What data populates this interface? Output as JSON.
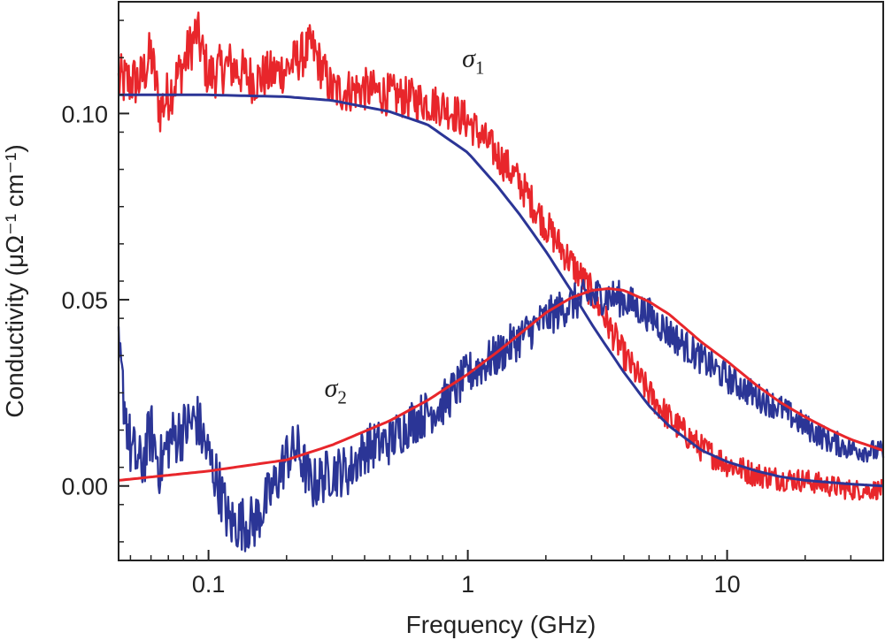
{
  "chart_data": {
    "type": "line",
    "title": "",
    "xlabel": "Frequency (GHz)",
    "ylabel": "Conductivity (μΩ⁻¹ cm⁻¹)",
    "xscale": "log",
    "xlim": [
      0.045,
      40
    ],
    "ylim": [
      -0.02,
      0.13
    ],
    "grid": false,
    "legend": "none",
    "xticks": [
      {
        "value": 0.1,
        "label": "0.1"
      },
      {
        "value": 1,
        "label": "1"
      },
      {
        "value": 10,
        "label": "10"
      }
    ],
    "yticks": [
      {
        "value": 0.0,
        "label": "0.00"
      },
      {
        "value": 0.05,
        "label": "0.05"
      },
      {
        "value": 0.1,
        "label": "0.10"
      }
    ],
    "annotations": [
      {
        "symbol": "σ",
        "subscript": "1",
        "x": 0.95,
        "y": 0.1125
      },
      {
        "symbol": "σ",
        "subscript": "2",
        "x": 0.28,
        "y": 0.024
      }
    ],
    "colors": {
      "sigma1": "#e8262b",
      "sigma2": "#2b3596"
    },
    "series": [
      {
        "kind": "measured",
        "color": "#e8262b",
        "noise": 0.0075,
        "x": [
          0.045,
          0.05,
          0.055,
          0.06,
          0.065,
          0.07,
          0.08,
          0.09,
          0.1,
          0.12,
          0.15,
          0.2,
          0.25,
          0.3,
          0.4,
          0.5,
          0.6,
          0.8,
          1.0,
          1.3,
          1.6,
          2.0,
          2.5,
          3.0,
          3.5,
          4.0,
          5.0,
          6.0,
          8.0,
          10.0,
          13.0,
          16.0,
          20.0,
          25.0,
          30.0,
          40.0
        ],
        "y": [
          0.1085,
          0.1085,
          0.109,
          0.116,
          0.101,
          0.105,
          0.113,
          0.122,
          0.11,
          0.113,
          0.109,
          0.112,
          0.118,
          0.106,
          0.1065,
          0.105,
          0.104,
          0.102,
          0.098,
          0.089,
          0.081,
          0.07,
          0.06,
          0.052,
          0.043,
          0.035,
          0.025,
          0.018,
          0.01,
          0.006,
          0.003,
          0.002,
          0.0015,
          0.0,
          -0.001,
          -0.001
        ]
      },
      {
        "kind": "measured",
        "color": "#2b3596",
        "noise": 0.0085,
        "x": [
          0.045,
          0.05,
          0.055,
          0.06,
          0.065,
          0.07,
          0.08,
          0.09,
          0.1,
          0.11,
          0.12,
          0.15,
          0.18,
          0.2,
          0.22,
          0.25,
          0.3,
          0.35,
          0.4,
          0.5,
          0.6,
          0.8,
          1.0,
          1.3,
          1.6,
          2.0,
          2.5,
          3.0,
          3.5,
          4.0,
          5.0,
          6.0,
          8.0,
          10.0,
          13.0,
          16.0,
          20.0,
          25.0,
          30.0,
          40.0
        ],
        "y": [
          0.035,
          0.01,
          0.005,
          0.015,
          0.005,
          0.012,
          0.015,
          0.018,
          0.008,
          0.0,
          -0.01,
          -0.01,
          0.0,
          0.008,
          0.01,
          0.0,
          0.004,
          0.004,
          0.01,
          0.012,
          0.017,
          0.022,
          0.03,
          0.035,
          0.04,
          0.045,
          0.049,
          0.051,
          0.051,
          0.05,
          0.046,
          0.041,
          0.034,
          0.029,
          0.024,
          0.021,
          0.016,
          0.012,
          0.01,
          0.009
        ]
      },
      {
        "kind": "fit",
        "color": "#2b3596",
        "x": [
          0.045,
          0.08,
          0.1,
          0.2,
          0.3,
          0.5,
          0.7,
          1.0,
          1.3,
          1.6,
          2.0,
          2.5,
          3.0,
          3.5,
          4.0,
          5.0,
          6.0,
          8.0,
          10.0,
          13.0,
          16.0,
          20.0,
          30.0,
          40.0
        ],
        "y": [
          0.105,
          0.105,
          0.105,
          0.1045,
          0.1035,
          0.1005,
          0.097,
          0.0895,
          0.0805,
          0.0725,
          0.063,
          0.0525,
          0.0435,
          0.0365,
          0.0305,
          0.0215,
          0.016,
          0.0095,
          0.0065,
          0.004,
          0.0025,
          0.0015,
          0.0005,
          0.0
        ]
      },
      {
        "kind": "fit",
        "color": "#e8262b",
        "x": [
          0.045,
          0.1,
          0.2,
          0.3,
          0.5,
          0.7,
          1.0,
          1.3,
          1.6,
          2.0,
          2.5,
          3.0,
          3.5,
          4.0,
          5.0,
          6.0,
          8.0,
          10.0,
          13.0,
          16.0,
          20.0,
          25.0,
          30.0,
          40.0
        ],
        "y": [
          0.0015,
          0.004,
          0.007,
          0.011,
          0.0175,
          0.023,
          0.03,
          0.036,
          0.041,
          0.0465,
          0.0505,
          0.0525,
          0.053,
          0.0525,
          0.0495,
          0.046,
          0.0385,
          0.0335,
          0.027,
          0.0225,
          0.0185,
          0.015,
          0.0125,
          0.0095
        ]
      }
    ]
  }
}
